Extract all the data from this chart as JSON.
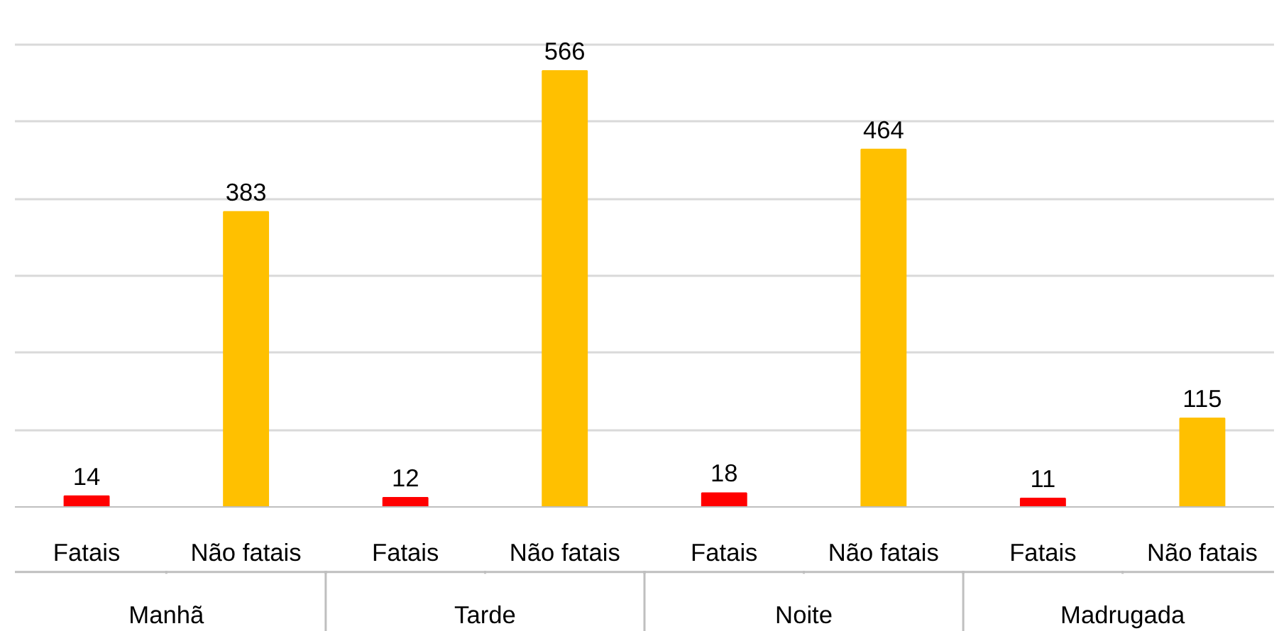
{
  "chart_data": {
    "type": "bar",
    "categories": [
      "Fatais",
      "Não fatais",
      "Fatais",
      "Não fatais",
      "Fatais",
      "Não fatais",
      "Fatais",
      "Não fatais"
    ],
    "values": [
      14,
      383,
      12,
      566,
      18,
      464,
      11,
      115
    ],
    "colors": [
      "#ff0000",
      "#ffc000",
      "#ff0000",
      "#ffc000",
      "#ff0000",
      "#ffc000",
      "#ff0000",
      "#ffc000"
    ],
    "tick_labels": "x",
    "grid": "y",
    "data_labels": true,
    "annotations": [
      "Manhã",
      "Tarde",
      "Noite",
      "Madrugada"
    ]
  }
}
